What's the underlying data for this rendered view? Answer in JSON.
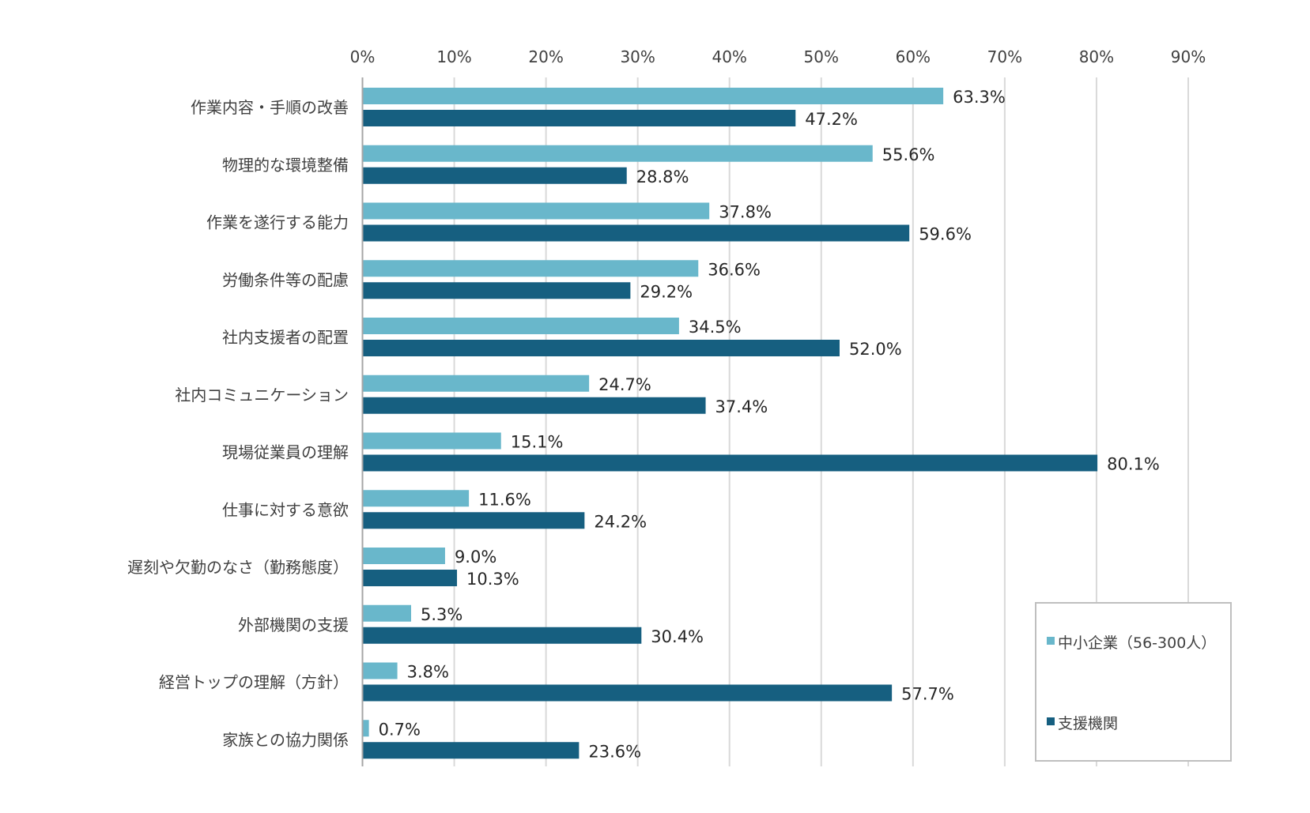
{
  "chart_data": {
    "type": "bar",
    "orientation": "horizontal",
    "title": "",
    "xlabel": "",
    "ylabel": "",
    "xlim": [
      0,
      90
    ],
    "x_ticks": [
      "0%",
      "10%",
      "20%",
      "30%",
      "40%",
      "50%",
      "60%",
      "70%",
      "80%",
      "90%"
    ],
    "grid": true,
    "legend_position": "bottom-right",
    "categories": [
      "作業内容・手順の改善",
      "物理的な環境整備",
      "作業を遂行する能力",
      "労働条件等の配慮",
      "社内支援者の配置",
      "社内コミュニケーション",
      "現場従業員の理解",
      "仕事に対する意欲",
      "遅刻や欠勤のなさ（勤務態度）",
      "外部機関の支援",
      "経営トップの理解（方針）",
      "家族との協力関係"
    ],
    "series": [
      {
        "name": "中小企業（56-300人）",
        "color": "#69b7cb",
        "values": [
          63.3,
          55.6,
          37.8,
          36.6,
          34.5,
          24.7,
          15.1,
          11.6,
          9.0,
          5.3,
          3.8,
          0.7
        ],
        "labels": [
          "63.3%",
          "55.6%",
          "37.8%",
          "36.6%",
          "34.5%",
          "24.7%",
          "15.1%",
          "11.6%",
          "9.0%",
          "5.3%",
          "3.8%",
          "0.7%"
        ]
      },
      {
        "name": "支援機関",
        "color": "#165f80",
        "values": [
          47.2,
          28.8,
          59.6,
          29.2,
          52.0,
          37.4,
          80.1,
          24.2,
          10.3,
          30.4,
          57.7,
          23.6
        ],
        "labels": [
          "47.2%",
          "28.8%",
          "59.6%",
          "29.2%",
          "52.0%",
          "37.4%",
          "80.1%",
          "24.2%",
          "10.3%",
          "30.4%",
          "57.7%",
          "23.6%"
        ]
      }
    ]
  }
}
